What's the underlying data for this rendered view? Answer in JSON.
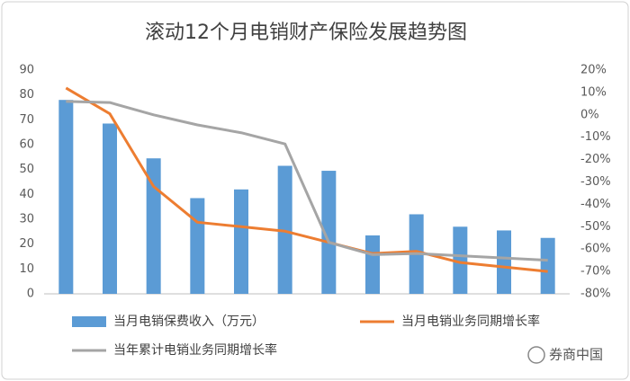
{
  "chart_data": {
    "type": "bar_line",
    "title": "滚动12个月电销财产保险发展趋势图",
    "categories": [
      null,
      null,
      null,
      null,
      null,
      null,
      null,
      null,
      null,
      null,
      null,
      null
    ],
    "series": [
      {
        "name": "当月电销保费收入（万元）",
        "color": "#5b9bd5",
        "type": "bar",
        "values": [
          78,
          68.5,
          54.5,
          38.5,
          42,
          51.5,
          49.5,
          23.5,
          32,
          27,
          25.5,
          22.5
        ]
      },
      {
        "name": "当月电销业务同期增长率",
        "color": "#ed7d31",
        "type": "line",
        "axis": "y2",
        "values": [
          12,
          0.5,
          -32,
          -48,
          -50,
          -52,
          -57,
          -62,
          -61,
          -66,
          -68,
          -70
        ]
      },
      {
        "name": "当年累计电销业务同期增长率",
        "color": "#a5a5a5",
        "type": "line",
        "axis": "y2",
        "values": [
          6,
          5.5,
          0,
          -4.5,
          -8,
          -13,
          -57,
          -62.5,
          -62,
          -63,
          -64,
          -65
        ]
      }
    ],
    "ylim": [
      0,
      90
    ],
    "yticks": [
      0,
      10,
      20,
      30,
      40,
      50,
      60,
      70,
      80,
      90
    ],
    "y2lim": [
      -80,
      20
    ],
    "y2ticks": [
      {
        "value": -80,
        "label": "-80%"
      },
      {
        "value": -70,
        "label": "-70%"
      },
      {
        "value": -60,
        "label": "-60%"
      },
      {
        "value": -50,
        "label": "-50%"
      },
      {
        "value": -40,
        "label": "-40%"
      },
      {
        "value": -30,
        "label": "-30%"
      },
      {
        "value": -20,
        "label": "-20%"
      },
      {
        "value": -10,
        "label": "-10%"
      },
      {
        "value": 0,
        "label": "0%"
      },
      {
        "value": 10,
        "label": "10%"
      },
      {
        "value": 20,
        "label": "20%"
      }
    ],
    "grid": false,
    "watermark": "券商中国"
  }
}
